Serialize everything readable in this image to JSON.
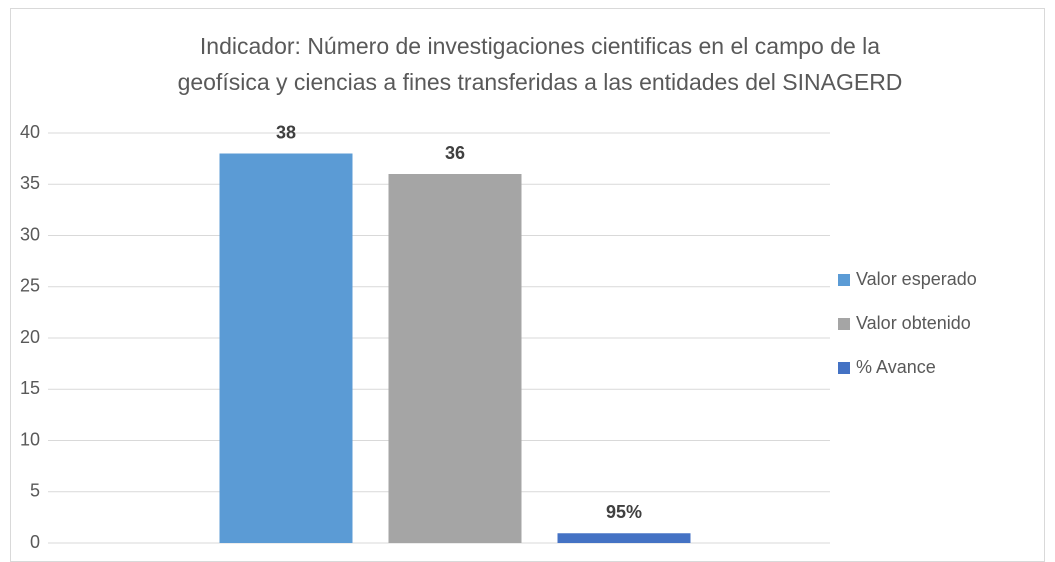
{
  "chart_data": {
    "type": "bar",
    "title": [
      "Indicador: Número de investigaciones cientificas en el campo de la",
      "geofísica y ciencias a fines transferidas a las entidades del SINAGERD"
    ],
    "categories": [
      null
    ],
    "series": [
      {
        "name": "Valor esperado",
        "color": "#5b9bd5",
        "values": [
          38
        ]
      },
      {
        "name": "Valor obtenido",
        "color": "#a5a5a5",
        "values": [
          36
        ]
      },
      {
        "name": "% Avance",
        "color": "#4472c4",
        "values": [
          0.95
        ],
        "value_labels": [
          "95%"
        ]
      }
    ],
    "ylim": [
      0,
      40
    ],
    "yticks": [
      0,
      5,
      10,
      15,
      20,
      25,
      30,
      35,
      40
    ],
    "grid": true,
    "legend": "right"
  }
}
